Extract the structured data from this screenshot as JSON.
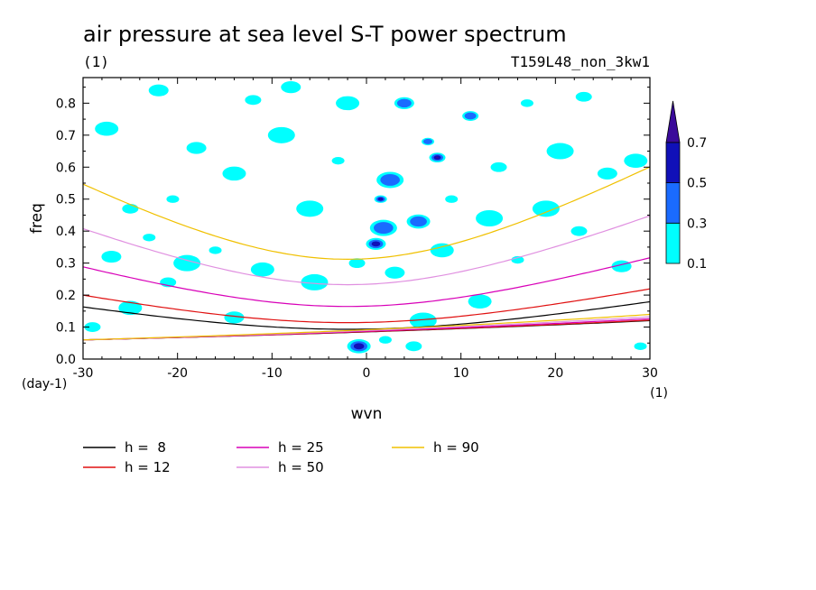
{
  "title": "air pressure at sea level S-T power spectrum",
  "units_left": "(1)",
  "run_id": "T159L48_non_3kw1",
  "chart_data": {
    "type": "heatmap",
    "xlabel": "wvn",
    "ylabel": "freq",
    "x_unit": "(1)",
    "y_unit": "(day-1)",
    "xlim": [
      -30,
      30
    ],
    "ylim": [
      0,
      0.88
    ],
    "xticks": [
      -30,
      -20,
      -10,
      0,
      10,
      20,
      30
    ],
    "xtick_labels": [
      "-30",
      "-20",
      "-10",
      "0",
      "10",
      "20",
      "30"
    ],
    "yticks": [
      0,
      0.1,
      0.2,
      0.3,
      0.4,
      0.5,
      0.6,
      0.7,
      0.8
    ],
    "ytick_labels": [
      "0.0",
      "0.1",
      "0.2",
      "0.3",
      "0.4",
      "0.5",
      "0.6",
      "0.7",
      "0.8"
    ],
    "colorbar": {
      "levels": [
        0.1,
        0.3,
        0.5,
        0.7
      ],
      "level_labels": [
        "0.1",
        "0.3",
        "0.5",
        "0.7"
      ],
      "colors": [
        "#00ffff",
        "#1a6bff",
        "#1010b8",
        "#3a0a9a"
      ]
    },
    "power_spots": [
      {
        "x": 1.5,
        "y": 0.5,
        "level": 0.7
      },
      {
        "x": 7.5,
        "y": 0.63,
        "level": 0.7
      },
      {
        "x": 1.0,
        "y": 0.36,
        "level": 0.5
      },
      {
        "x": -0.8,
        "y": 0.04,
        "level": 0.5
      },
      {
        "x": 1.8,
        "y": 0.41,
        "level": 0.3
      },
      {
        "x": 6.5,
        "y": 0.68,
        "level": 0.3
      },
      {
        "x": 11.0,
        "y": 0.76,
        "level": 0.3
      },
      {
        "x": 4.0,
        "y": 0.8,
        "level": 0.3
      },
      {
        "x": 5.5,
        "y": 0.43,
        "level": 0.3
      },
      {
        "x": 2.5,
        "y": 0.56,
        "level": 0.3
      },
      {
        "x": -20.5,
        "y": 0.5,
        "level": 0.1
      },
      {
        "x": -25.0,
        "y": 0.47,
        "level": 0.1
      },
      {
        "x": -18.0,
        "y": 0.66,
        "level": 0.1
      },
      {
        "x": -14.0,
        "y": 0.58,
        "level": 0.1
      },
      {
        "x": -9.0,
        "y": 0.7,
        "level": 0.1
      },
      {
        "x": -3.0,
        "y": 0.62,
        "level": 0.1
      },
      {
        "x": -12.0,
        "y": 0.81,
        "level": 0.1
      },
      {
        "x": -22.0,
        "y": 0.84,
        "level": 0.1
      },
      {
        "x": -27.5,
        "y": 0.72,
        "level": 0.1
      },
      {
        "x": -6.0,
        "y": 0.47,
        "level": 0.1
      },
      {
        "x": -16.0,
        "y": 0.34,
        "level": 0.1
      },
      {
        "x": -21.0,
        "y": 0.24,
        "level": 0.1
      },
      {
        "x": -27.0,
        "y": 0.32,
        "level": 0.1
      },
      {
        "x": -11.0,
        "y": 0.28,
        "level": 0.1
      },
      {
        "x": -5.5,
        "y": 0.24,
        "level": 0.1
      },
      {
        "x": -23.0,
        "y": 0.38,
        "level": 0.1
      },
      {
        "x": -1.0,
        "y": 0.3,
        "level": 0.1
      },
      {
        "x": 3.0,
        "y": 0.27,
        "level": 0.1
      },
      {
        "x": 8.0,
        "y": 0.34,
        "level": 0.1
      },
      {
        "x": 13.0,
        "y": 0.44,
        "level": 0.1
      },
      {
        "x": 16.0,
        "y": 0.31,
        "level": 0.1
      },
      {
        "x": 22.5,
        "y": 0.4,
        "level": 0.1
      },
      {
        "x": 25.5,
        "y": 0.58,
        "level": 0.1
      },
      {
        "x": 28.5,
        "y": 0.62,
        "level": 0.1
      },
      {
        "x": 20.5,
        "y": 0.65,
        "level": 0.1
      },
      {
        "x": 17.0,
        "y": 0.8,
        "level": 0.1
      },
      {
        "x": 23.0,
        "y": 0.82,
        "level": 0.1
      },
      {
        "x": 27.0,
        "y": 0.29,
        "level": 0.1
      },
      {
        "x": 12.0,
        "y": 0.18,
        "level": 0.1
      },
      {
        "x": 6.0,
        "y": 0.12,
        "level": 0.1
      },
      {
        "x": 2.0,
        "y": 0.06,
        "level": 0.1
      },
      {
        "x": 5.0,
        "y": 0.04,
        "level": 0.1
      },
      {
        "x": -14.0,
        "y": 0.13,
        "level": 0.1
      },
      {
        "x": -25.0,
        "y": 0.16,
        "level": 0.1
      },
      {
        "x": -19.0,
        "y": 0.3,
        "level": 0.1
      },
      {
        "x": 9.0,
        "y": 0.5,
        "level": 0.1
      },
      {
        "x": 14.0,
        "y": 0.6,
        "level": 0.1
      },
      {
        "x": -8.0,
        "y": 0.85,
        "level": 0.1
      },
      {
        "x": -2.0,
        "y": 0.8,
        "level": 0.1
      },
      {
        "x": 19.0,
        "y": 0.47,
        "level": 0.1
      },
      {
        "x": 29.0,
        "y": 0.04,
        "level": 0.1
      },
      {
        "x": -29.0,
        "y": 0.1,
        "level": 0.1
      }
    ],
    "series": [
      {
        "name": "h =  8",
        "h": 8,
        "color": "#000000"
      },
      {
        "name": "h = 12",
        "h": 12,
        "color": "#e01010"
      },
      {
        "name": "h = 25",
        "h": 25,
        "color": "#d800b8"
      },
      {
        "name": "h = 50",
        "h": 50,
        "color": "#e090e0"
      },
      {
        "name": "h = 90",
        "h": 90,
        "color": "#f0c000"
      }
    ]
  }
}
